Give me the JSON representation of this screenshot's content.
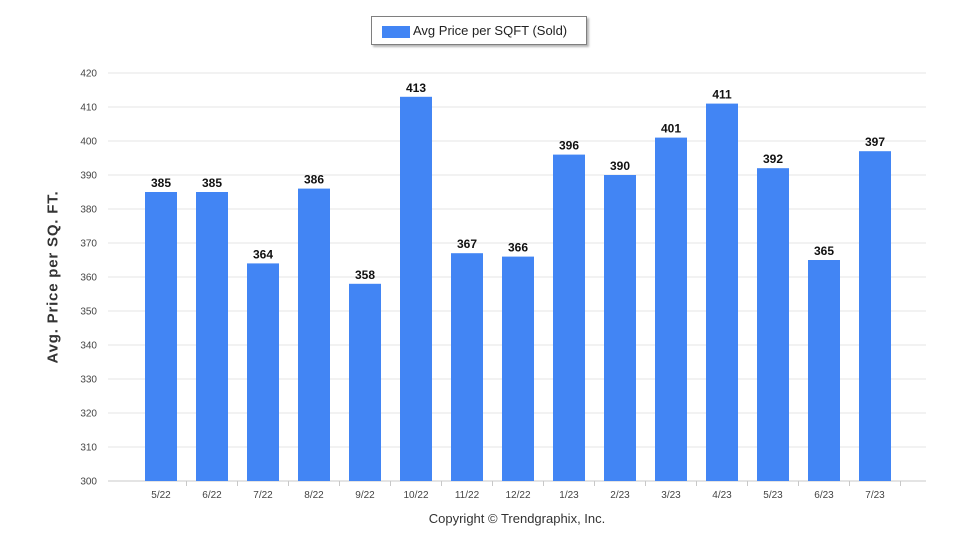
{
  "chart_data": {
    "type": "bar",
    "title": "",
    "xlabel": "",
    "ylabel": "Avg. Price per SQ. FT.",
    "categories": [
      "5/22",
      "6/22",
      "7/22",
      "8/22",
      "9/22",
      "10/22",
      "11/22",
      "12/22",
      "1/23",
      "2/23",
      "3/23",
      "4/23",
      "5/23",
      "6/23",
      "7/23"
    ],
    "series": [
      {
        "name": "Avg Price per SQFT (Sold)",
        "values": [
          385,
          385,
          364,
          386,
          358,
          413,
          367,
          366,
          396,
          390,
          401,
          411,
          392,
          365,
          397
        ],
        "color": "#4285f4"
      }
    ],
    "ylim": [
      300,
      420
    ],
    "yticks": [
      300,
      310,
      320,
      330,
      340,
      350,
      360,
      370,
      380,
      390,
      400,
      410,
      420
    ],
    "grid": true,
    "legend_position": "top-center",
    "data_labels": true
  },
  "footer": {
    "copyright": "Copyright © Trendgraphix, Inc."
  }
}
